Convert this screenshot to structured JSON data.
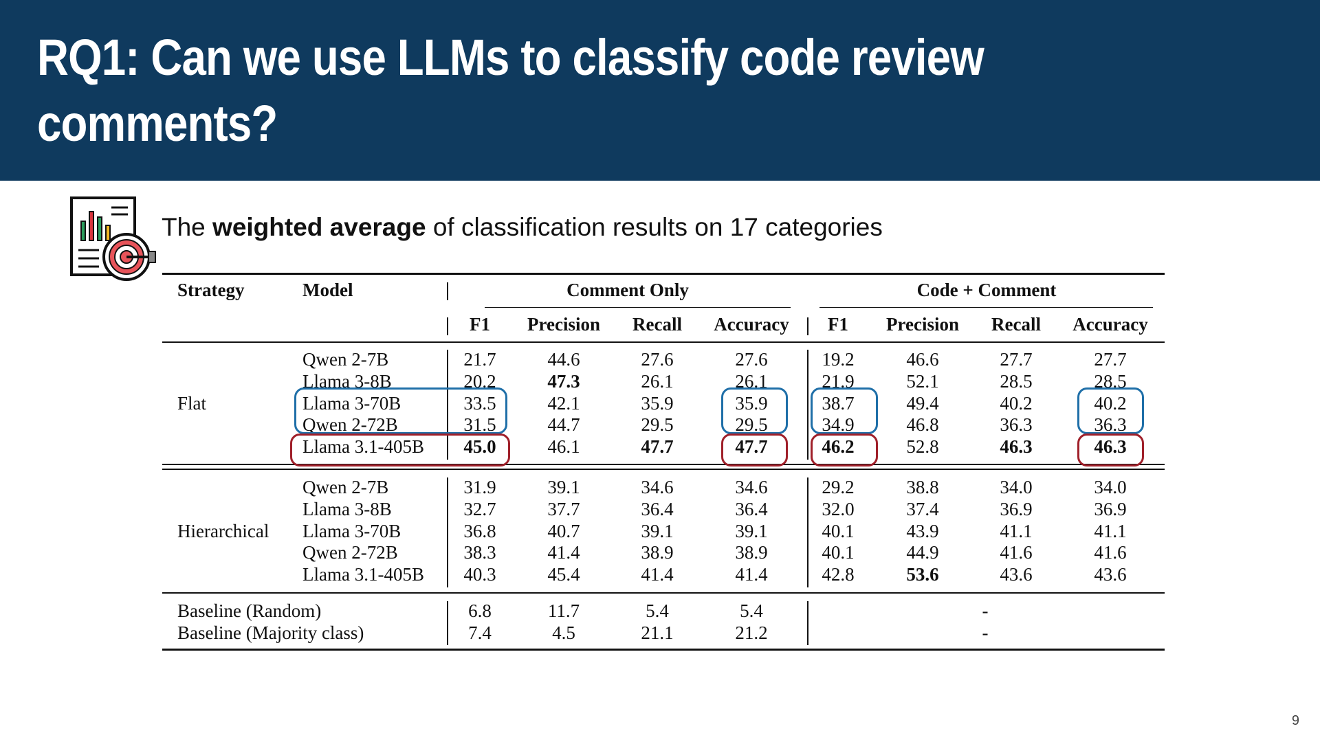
{
  "slide": {
    "title": "RQ1: Can we use LLMs to classify code review comments?",
    "subtitle_prefix": "The ",
    "subtitle_bold": "weighted average",
    "subtitle_suffix": " of classification results on 17 categories",
    "page_number": "9",
    "icon": "chart-target-icon",
    "colors": {
      "title_bar": "#0f3a5e",
      "highlight_blue": "#1f6fa8",
      "highlight_red": "#a0202a"
    }
  },
  "table": {
    "headers": {
      "strategy": "Strategy",
      "model": "Model",
      "group1": "Comment Only",
      "group2": "Code + Comment",
      "metrics": [
        "F1",
        "Precision",
        "Recall",
        "Accuracy",
        "F1",
        "Precision",
        "Recall",
        "Accuracy"
      ]
    },
    "groups": [
      {
        "strategy": "Flat",
        "rows": [
          {
            "model": "Qwen 2-7B",
            "values": [
              "21.7",
              "44.6",
              "27.6",
              "27.6",
              "19.2",
              "46.6",
              "27.7",
              "27.7"
            ],
            "bold": []
          },
          {
            "model": "Llama 3-8B",
            "values": [
              "20.2",
              "47.3",
              "26.1",
              "26.1",
              "21.9",
              "52.1",
              "28.5",
              "28.5"
            ],
            "bold": [
              1
            ]
          },
          {
            "model": "Llama 3-70B",
            "values": [
              "33.5",
              "42.1",
              "35.9",
              "35.9",
              "38.7",
              "49.4",
              "40.2",
              "40.2"
            ],
            "bold": []
          },
          {
            "model": "Qwen 2-72B",
            "values": [
              "31.5",
              "44.7",
              "29.5",
              "29.5",
              "34.9",
              "46.8",
              "36.3",
              "36.3"
            ],
            "bold": []
          },
          {
            "model": "Llama 3.1-405B",
            "values": [
              "45.0",
              "46.1",
              "47.7",
              "47.7",
              "46.2",
              "52.8",
              "46.3",
              "46.3"
            ],
            "bold": [
              0,
              2,
              3,
              4,
              6,
              7
            ]
          }
        ]
      },
      {
        "strategy": "Hierarchical",
        "rows": [
          {
            "model": "Qwen 2-7B",
            "values": [
              "31.9",
              "39.1",
              "34.6",
              "34.6",
              "29.2",
              "38.8",
              "34.0",
              "34.0"
            ],
            "bold": []
          },
          {
            "model": "Llama 3-8B",
            "values": [
              "32.7",
              "37.7",
              "36.4",
              "36.4",
              "32.0",
              "37.4",
              "36.9",
              "36.9"
            ],
            "bold": []
          },
          {
            "model": "Llama 3-70B",
            "values": [
              "36.8",
              "40.7",
              "39.1",
              "39.1",
              "40.1",
              "43.9",
              "41.1",
              "41.1"
            ],
            "bold": []
          },
          {
            "model": "Qwen 2-72B",
            "values": [
              "38.3",
              "41.4",
              "38.9",
              "38.9",
              "40.1",
              "44.9",
              "41.6",
              "41.6"
            ],
            "bold": []
          },
          {
            "model": "Llama 3.1-405B",
            "values": [
              "40.3",
              "45.4",
              "41.4",
              "41.4",
              "42.8",
              "53.6",
              "43.6",
              "43.6"
            ],
            "bold": [
              5
            ]
          }
        ]
      }
    ],
    "baselines": [
      {
        "label": "Baseline (Random)",
        "values": [
          "6.8",
          "11.7",
          "5.4",
          "5.4"
        ],
        "code_comment": "-"
      },
      {
        "label": "Baseline (Majority class)",
        "values": [
          "7.4",
          "4.5",
          "21.1",
          "21.2"
        ],
        "code_comment": "-"
      }
    ]
  }
}
